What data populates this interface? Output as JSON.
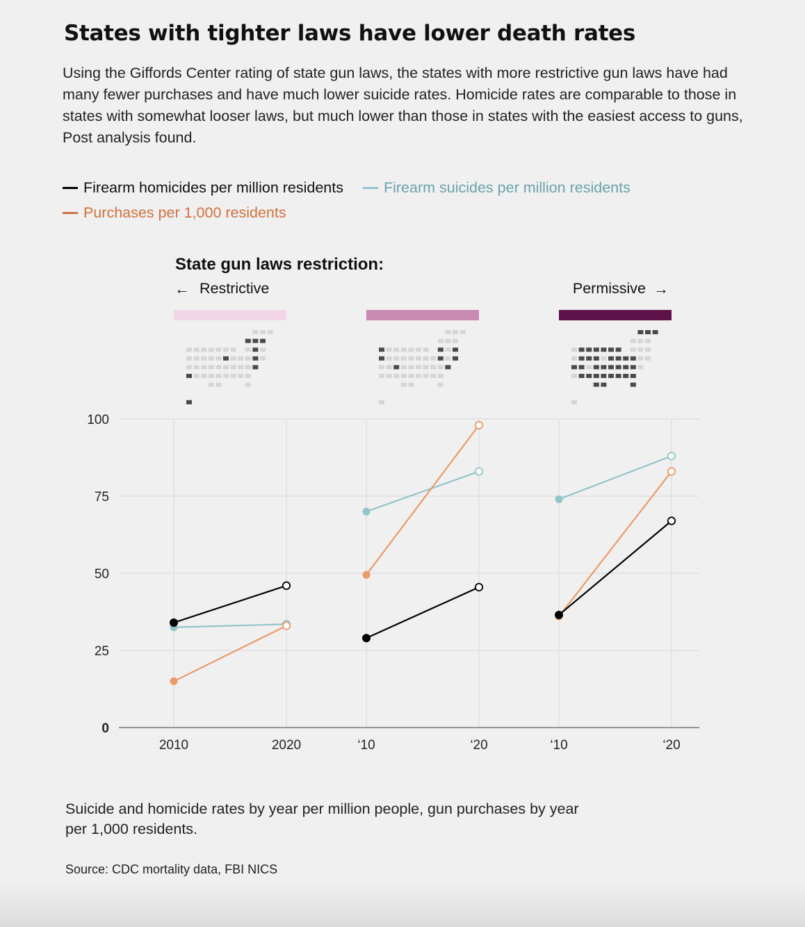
{
  "title": "States with tighter laws have lower death rates",
  "dek": "Using the Giffords Center rating of state gun laws, the states with more restrictive gun laws have had many fewer purchases and have much lower suicide rates. Homicide rates are comparable to those in states with somewhat looser laws, but much lower than those in states with the easiest access to guns, Post analysis found.",
  "legend": {
    "homicides": "Firearm homicides per million residents",
    "suicides": "Firearm suicides per million residents",
    "purchases": "Purchases per 1,000 residents"
  },
  "restriction": {
    "heading": "State gun laws restriction:",
    "left_label": "Restrictive",
    "right_label": "Permissive",
    "left_arrow": "←",
    "right_arrow": "→"
  },
  "footnote": "Suicide and homicide rates by year per million people, gun purchases by year per 1,000 residents.",
  "source": "Source: CDC mortality data, FBI NICS",
  "colors": {
    "homicides": "#000000",
    "suicides": "#93c4c9",
    "purchases": "#ec9a6a",
    "purchases_legend": "#d0713d",
    "suicides_legend": "#6aa3ab",
    "group_colors": [
      "#f2d6e6",
      "#c98bb2",
      "#5e1249"
    ],
    "map_light": "#d6d6d6",
    "map_dark": "#4a4a4a"
  },
  "chart_data": {
    "type": "line",
    "title": "",
    "xlabel": "",
    "ylabel": "",
    "ylim": [
      0,
      100
    ],
    "yticks": [
      "0",
      "25",
      "50",
      "75",
      "100"
    ],
    "groups": [
      {
        "x_labels": [
          "2010",
          "2020"
        ],
        "x": [
          2010,
          2020
        ],
        "series": [
          {
            "name": "Firearm homicides per million residents",
            "values": [
              34,
              46
            ]
          },
          {
            "name": "Firearm suicides per million residents",
            "values": [
              32.5,
              33.5
            ]
          },
          {
            "name": "Purchases per 1,000 residents",
            "values": [
              15,
              33
            ]
          }
        ]
      },
      {
        "x_labels": [
          "‘10",
          "‘20"
        ],
        "x": [
          2010,
          2020
        ],
        "series": [
          {
            "name": "Firearm homicides per million residents",
            "values": [
              29,
              45.5
            ]
          },
          {
            "name": "Firearm suicides per million residents",
            "values": [
              70,
              83
            ]
          },
          {
            "name": "Purchases per 1,000 residents",
            "values": [
              49.5,
              98
            ]
          }
        ]
      },
      {
        "x_labels": [
          "‘10",
          "‘20"
        ],
        "x": [
          2010,
          2020
        ],
        "series": [
          {
            "name": "Firearm homicides per million residents",
            "values": [
              36.5,
              67
            ]
          },
          {
            "name": "Firearm suicides per million residents",
            "values": [
              74,
              88
            ]
          },
          {
            "name": "Purchases per 1,000 residents",
            "values": [
              36,
              83
            ]
          }
        ]
      }
    ]
  }
}
